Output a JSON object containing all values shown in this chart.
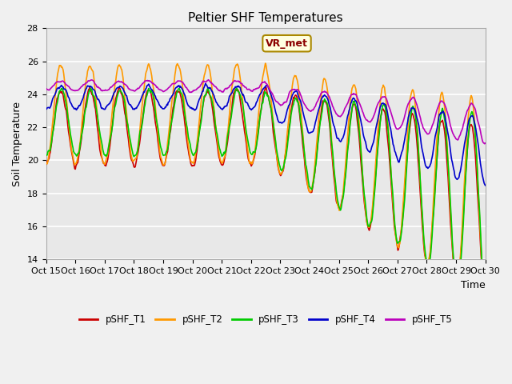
{
  "title": "Peltier SHF Temperatures",
  "xlabel": "Time",
  "ylabel": "Soil Temperature",
  "ylim": [
    14,
    28
  ],
  "xlim": [
    0,
    360
  ],
  "tick_labels": [
    "Oct 15",
    "Oct 16",
    "Oct 17",
    "Oct 18",
    "Oct 19",
    "Oct 20",
    "Oct 21",
    "Oct 22",
    "Oct 23",
    "Oct 24",
    "Oct 25",
    "Oct 26",
    "Oct 27",
    "Oct 28",
    "Oct 29",
    "Oct 30"
  ],
  "annotation": "VR_met",
  "colors": {
    "T1": "#cc0000",
    "T2": "#ff9900",
    "T3": "#00cc00",
    "T4": "#0000cc",
    "T5": "#bb00bb"
  },
  "legend_labels": [
    "pSHF_T1",
    "pSHF_T2",
    "pSHF_T3",
    "pSHF_T4",
    "pSHF_T5"
  ],
  "background_color": "#f0f0f0",
  "plot_bg_color": "#e8e8e8",
  "grid_color": "#ffffff",
  "title_fontsize": 11,
  "axis_fontsize": 9,
  "tick_fontsize": 8
}
